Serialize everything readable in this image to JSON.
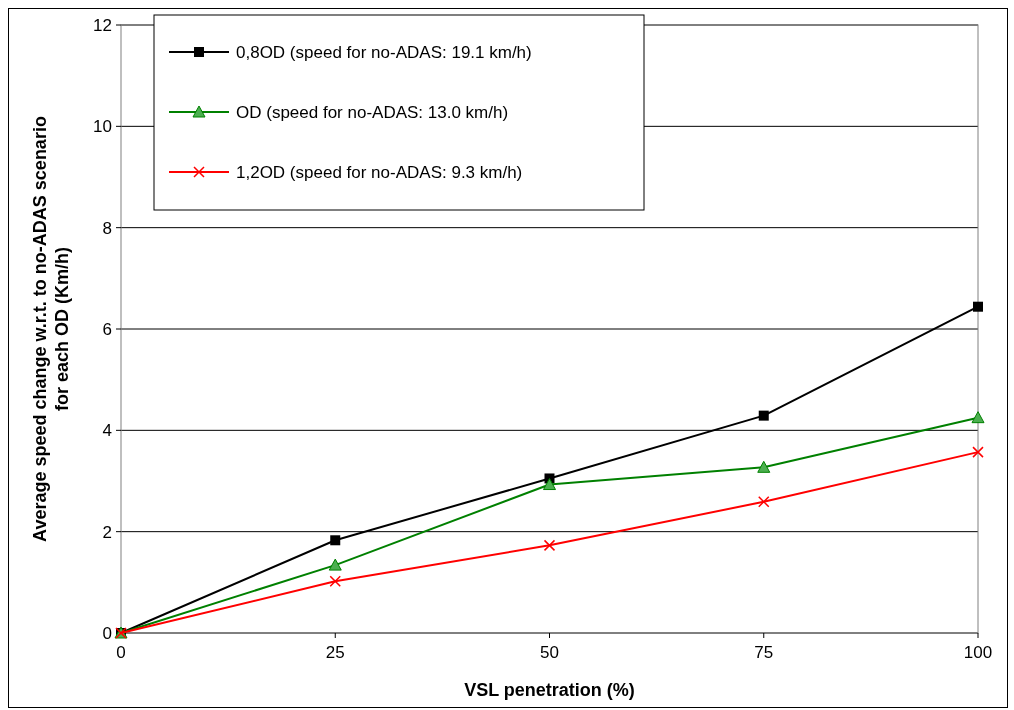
{
  "chart_data": {
    "type": "line",
    "xlabel": "VSL penetration (%)",
    "ylabel": "Average speed change w.r.t. to no-ADAS scenario\nfor each OD  (Km/h)",
    "x": [
      0,
      25,
      50,
      75,
      100
    ],
    "xlim": [
      0,
      100
    ],
    "xticks": [
      0,
      25,
      50,
      75,
      100
    ],
    "ylim": [
      0,
      12
    ],
    "yticks": [
      0,
      2,
      4,
      6,
      8,
      10,
      12
    ],
    "grid": "y",
    "legend": "top left",
    "line_style": "solid",
    "series": [
      {
        "name": "0,8OD (speed for no-ADAS: 19.1 km/h)",
        "color": "#000000",
        "marker": "square",
        "values": [
          0,
          1.83,
          3.05,
          4.29,
          6.44
        ]
      },
      {
        "name": "OD (speed for no-ADAS: 13.0 km/h)",
        "color": "#008000",
        "marker": "triangle",
        "values": [
          0,
          1.34,
          2.93,
          3.27,
          4.25
        ]
      },
      {
        "name": "1,2OD (speed for no-ADAS: 9.3 km/h)",
        "color": "#ff0000",
        "marker": "cross",
        "values": [
          0,
          1.02,
          1.73,
          2.59,
          3.57
        ]
      }
    ]
  }
}
